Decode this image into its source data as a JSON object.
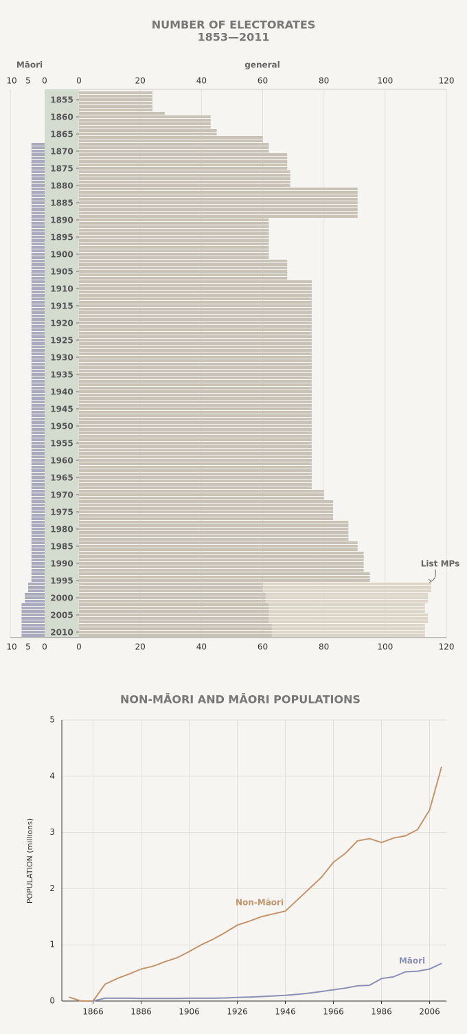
{
  "chart_data": [
    {
      "type": "bar",
      "orientation": "horizontal",
      "title": "NUMBER OF ELECTORATES",
      "subtitle": "1853—2011",
      "x": [
        1853,
        1854,
        1855,
        1856,
        1857,
        1858,
        1859,
        1860,
        1861,
        1862,
        1863,
        1864,
        1865,
        1866,
        1867,
        1868,
        1869,
        1870,
        1871,
        1872,
        1873,
        1874,
        1875,
        1876,
        1877,
        1878,
        1879,
        1880,
        1881,
        1882,
        1883,
        1884,
        1885,
        1886,
        1887,
        1888,
        1889,
        1890,
        1891,
        1892,
        1893,
        1894,
        1895,
        1896,
        1897,
        1898,
        1899,
        1900,
        1901,
        1902,
        1903,
        1904,
        1905,
        1906,
        1907,
        1908,
        1909,
        1910,
        1911,
        1912,
        1913,
        1914,
        1915,
        1916,
        1917,
        1918,
        1919,
        1920,
        1921,
        1922,
        1923,
        1924,
        1925,
        1926,
        1927,
        1928,
        1929,
        1930,
        1931,
        1932,
        1933,
        1934,
        1935,
        1936,
        1937,
        1938,
        1939,
        1940,
        1941,
        1942,
        1943,
        1944,
        1945,
        1946,
        1947,
        1948,
        1949,
        1950,
        1951,
        1952,
        1953,
        1954,
        1955,
        1956,
        1957,
        1958,
        1959,
        1960,
        1961,
        1962,
        1963,
        1964,
        1965,
        1966,
        1967,
        1968,
        1969,
        1970,
        1971,
        1972,
        1973,
        1974,
        1975,
        1976,
        1977,
        1978,
        1979,
        1980,
        1981,
        1982,
        1983,
        1984,
        1985,
        1986,
        1987,
        1988,
        1989,
        1990,
        1991,
        1992,
        1993,
        1994,
        1995,
        1996,
        1997,
        1998,
        1999,
        2000,
        2001,
        2002,
        2003,
        2004,
        2005,
        2006,
        2007,
        2008,
        2009,
        2010,
        2011
      ],
      "xlim": [
        1852.5,
        2011.5
      ],
      "xticks": [
        1855,
        1860,
        1865,
        1870,
        1875,
        1880,
        1885,
        1890,
        1895,
        1900,
        1905,
        1910,
        1915,
        1920,
        1925,
        1930,
        1935,
        1940,
        1945,
        1950,
        1955,
        1960,
        1965,
        1970,
        1975,
        1980,
        1985,
        1990,
        1995,
        2000,
        2005,
        2010
      ],
      "ylim": [
        0,
        120
      ],
      "yticks": [
        0,
        20,
        40,
        60,
        80,
        100,
        120
      ],
      "y2lim": [
        0,
        10
      ],
      "y2ticks": [
        10,
        5,
        0
      ],
      "y2_reversed": true,
      "grid": true,
      "series": [
        {
          "name": "general",
          "color": "#c9c2b6",
          "values": [
            24,
            24,
            24,
            24,
            24,
            24,
            28,
            43,
            43,
            43,
            43,
            45,
            45,
            60,
            60,
            62,
            62,
            62,
            68,
            68,
            68,
            68,
            68,
            69,
            69,
            69,
            69,
            69,
            91,
            91,
            91,
            91,
            91,
            91,
            91,
            91,
            91,
            62,
            62,
            62,
            62,
            62,
            62,
            62,
            62,
            62,
            62,
            62,
            62,
            68,
            68,
            68,
            68,
            68,
            68,
            76,
            76,
            76,
            76,
            76,
            76,
            76,
            76,
            76,
            76,
            76,
            76,
            76,
            76,
            76,
            76,
            76,
            76,
            76,
            76,
            76,
            76,
            76,
            76,
            76,
            76,
            76,
            76,
            76,
            76,
            76,
            76,
            76,
            76,
            76,
            76,
            76,
            76,
            76,
            76,
            76,
            76,
            76,
            76,
            76,
            76,
            76,
            76,
            76,
            76,
            76,
            76,
            76,
            76,
            76,
            76,
            76,
            76,
            76,
            76,
            76,
            80,
            80,
            80,
            83,
            83,
            83,
            83,
            83,
            83,
            88,
            88,
            88,
            88,
            88,
            88,
            91,
            91,
            91,
            93,
            93,
            93,
            93,
            93,
            93,
            95,
            95,
            95,
            60,
            60,
            60,
            61,
            61,
            61,
            62,
            62,
            62,
            62,
            62,
            62,
            63,
            63,
            63,
            63
          ]
        },
        {
          "name": "List MPs",
          "color": "#ddd5c7",
          "stack_on": 0,
          "values": [
            null,
            null,
            null,
            null,
            null,
            null,
            null,
            null,
            null,
            null,
            null,
            null,
            null,
            null,
            null,
            null,
            null,
            null,
            null,
            null,
            null,
            null,
            null,
            null,
            null,
            null,
            null,
            null,
            null,
            null,
            null,
            null,
            null,
            null,
            null,
            null,
            null,
            null,
            null,
            null,
            null,
            null,
            null,
            null,
            null,
            null,
            null,
            null,
            null,
            null,
            null,
            null,
            null,
            null,
            null,
            null,
            null,
            null,
            null,
            null,
            null,
            null,
            null,
            null,
            null,
            null,
            null,
            null,
            null,
            null,
            null,
            null,
            null,
            null,
            null,
            null,
            null,
            null,
            null,
            null,
            null,
            null,
            null,
            null,
            null,
            null,
            null,
            null,
            null,
            null,
            null,
            null,
            null,
            null,
            null,
            null,
            null,
            null,
            null,
            null,
            null,
            null,
            null,
            null,
            null,
            null,
            null,
            null,
            null,
            null,
            null,
            null,
            null,
            null,
            null,
            null,
            null,
            null,
            null,
            null,
            null,
            null,
            null,
            null,
            null,
            null,
            null,
            null,
            null,
            null,
            null,
            null,
            null,
            null,
            null,
            null,
            null,
            null,
            null,
            null,
            null,
            null,
            null,
            55,
            55,
            55,
            53,
            53,
            53,
            51,
            51,
            51,
            52,
            52,
            52,
            50,
            50,
            50,
            50
          ]
        },
        {
          "name": "Māori",
          "color": "#aaa9bd",
          "axis": "y2",
          "values": [
            null,
            null,
            null,
            null,
            null,
            null,
            null,
            null,
            null,
            null,
            null,
            null,
            null,
            null,
            null,
            4,
            4,
            4,
            4,
            4,
            4,
            4,
            4,
            4,
            4,
            4,
            4,
            4,
            4,
            4,
            4,
            4,
            4,
            4,
            4,
            4,
            4,
            4,
            4,
            4,
            4,
            4,
            4,
            4,
            4,
            4,
            4,
            4,
            4,
            4,
            4,
            4,
            4,
            4,
            4,
            4,
            4,
            4,
            4,
            4,
            4,
            4,
            4,
            4,
            4,
            4,
            4,
            4,
            4,
            4,
            4,
            4,
            4,
            4,
            4,
            4,
            4,
            4,
            4,
            4,
            4,
            4,
            4,
            4,
            4,
            4,
            4,
            4,
            4,
            4,
            4,
            4,
            4,
            4,
            4,
            4,
            4,
            4,
            4,
            4,
            4,
            4,
            4,
            4,
            4,
            4,
            4,
            4,
            4,
            4,
            4,
            4,
            4,
            4,
            4,
            4,
            4,
            4,
            4,
            4,
            4,
            4,
            4,
            4,
            4,
            4,
            4,
            4,
            4,
            4,
            4,
            4,
            4,
            4,
            4,
            4,
            4,
            4,
            4,
            4,
            4,
            4,
            4,
            5,
            5,
            5,
            6,
            6,
            6,
            7,
            7,
            7,
            7,
            7,
            7,
            7,
            7,
            7,
            7
          ]
        }
      ]
    },
    {
      "type": "line",
      "title": "NON-MĀORI AND MĀORI POPULATIONS",
      "ylabel": "POPULATION (millions)",
      "x": [
        1856,
        1861,
        1866,
        1871,
        1876,
        1881,
        1886,
        1891,
        1896,
        1901,
        1906,
        1911,
        1916,
        1921,
        1926,
        1931,
        1936,
        1941,
        1946,
        1951,
        1956,
        1961,
        1966,
        1971,
        1976,
        1981,
        1986,
        1991,
        1996,
        2001,
        2006,
        2011
      ],
      "xlim": [
        1853,
        2013
      ],
      "xticks": [
        1866,
        1886,
        1906,
        1926,
        1946,
        1966,
        1986,
        2006
      ],
      "ylim": [
        0,
        5
      ],
      "yticks": [
        0,
        1,
        2,
        3,
        4,
        5
      ],
      "grid": true,
      "series": [
        {
          "name": "Non-Māori",
          "color": "#c4956a",
          "values": [
            0.07,
            0,
            0,
            0.3,
            0.4,
            0.48,
            0.57,
            0.62,
            0.7,
            0.77,
            0.88,
            1.0,
            1.1,
            1.22,
            1.35,
            1.42,
            1.5,
            1.55,
            1.6,
            1.8,
            2.0,
            2.2,
            2.47,
            2.63,
            2.85,
            2.89,
            2.82,
            2.9,
            2.94,
            3.05,
            3.4,
            4.17
          ]
        },
        {
          "name": "Māori",
          "color": "#8c8fb8",
          "values": [
            null,
            null,
            0,
            0.05,
            0.05,
            0.05,
            0.045,
            0.045,
            0.045,
            0.045,
            0.05,
            0.05,
            0.05,
            0.055,
            0.065,
            0.07,
            0.08,
            0.09,
            0.1,
            0.12,
            0.14,
            0.17,
            0.2,
            0.23,
            0.27,
            0.28,
            0.4,
            0.43,
            0.52,
            0.53,
            0.57,
            0.67
          ]
        }
      ]
    }
  ]
}
